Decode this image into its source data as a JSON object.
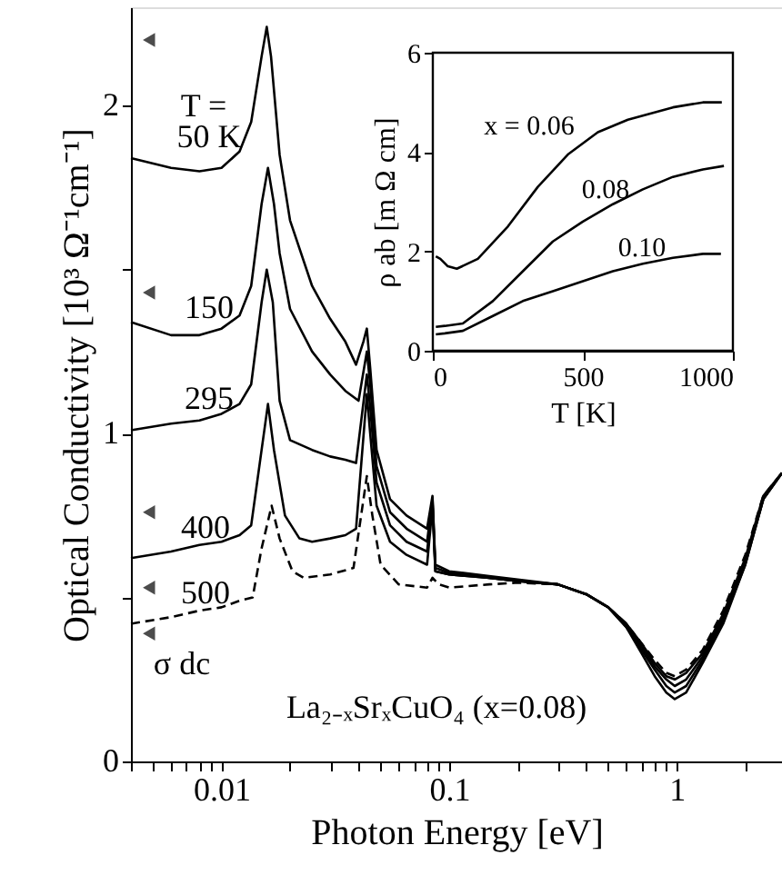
{
  "chart_data": [
    {
      "type": "line",
      "xlabel": "Photon Energy [eV]",
      "ylabel": "Optical Conductivity [10³ Ω⁻¹cm⁻¹]",
      "log": "x",
      "grid": false,
      "xlim": [
        0.004,
        2.9
      ],
      "ylim": [
        0,
        2.3
      ],
      "xticks": [
        {
          "value": 0.004,
          "label": null
        },
        {
          "value": 0.005,
          "label": null
        },
        {
          "value": 0.006,
          "label": null
        },
        {
          "value": 0.007,
          "label": null
        },
        {
          "value": 0.008,
          "label": null
        },
        {
          "value": 0.009,
          "label": null
        },
        0.01,
        {
          "value": 0.02,
          "label": null
        },
        {
          "value": 0.03,
          "label": null
        },
        {
          "value": 0.04,
          "label": null
        },
        {
          "value": 0.05,
          "label": null
        },
        {
          "value": 0.06,
          "label": null
        },
        {
          "value": 0.07,
          "label": null
        },
        {
          "value": 0.08,
          "label": null
        },
        {
          "value": 0.09,
          "label": null
        },
        0.1,
        {
          "value": 0.2,
          "label": null
        },
        {
          "value": 0.3,
          "label": null
        },
        {
          "value": 0.4,
          "label": null
        },
        {
          "value": 0.5,
          "label": null
        },
        {
          "value": 0.6,
          "label": null
        },
        {
          "value": 0.7,
          "label": null
        },
        {
          "value": 0.8,
          "label": null
        },
        {
          "value": 0.9,
          "label": null
        },
        1,
        {
          "value": 2,
          "label": null
        }
      ],
      "yticks": [
        0,
        {
          "value": 0.5,
          "label": null
        },
        1,
        {
          "value": 1.5,
          "label": null
        },
        2
      ],
      "series": [
        {
          "color": "#000000",
          "line_style": "solid",
          "x": [
            0.004,
            0.006,
            0.008,
            0.01,
            0.012,
            0.0135,
            0.015,
            0.0158,
            0.0165,
            0.018,
            0.02,
            0.025,
            0.03,
            0.035,
            0.039,
            0.042,
            0.0435,
            0.045,
            0.048,
            0.055,
            0.065,
            0.08,
            0.0845,
            0.087,
            0.1,
            0.15,
            0.2,
            0.3,
            0.4,
            0.5,
            0.6,
            0.7,
            0.8,
            0.9,
            0.98,
            1.1,
            1.3,
            1.6,
            2.0,
            2.4,
            2.9
          ],
          "values": [
            1.84,
            1.81,
            1.8,
            1.81,
            1.86,
            1.95,
            2.15,
            2.24,
            2.15,
            1.85,
            1.65,
            1.45,
            1.35,
            1.28,
            1.21,
            1.28,
            1.32,
            1.2,
            0.95,
            0.8,
            0.75,
            0.71,
            0.81,
            0.6,
            0.58,
            0.565,
            0.555,
            0.54,
            0.51,
            0.47,
            0.41,
            0.33,
            0.26,
            0.21,
            0.19,
            0.21,
            0.3,
            0.42,
            0.6,
            0.8,
            0.88
          ]
        },
        {
          "color": "#000000",
          "line_style": "solid",
          "x": [
            0.004,
            0.006,
            0.008,
            0.01,
            0.012,
            0.0135,
            0.015,
            0.016,
            0.017,
            0.018,
            0.02,
            0.025,
            0.03,
            0.035,
            0.04,
            0.0435,
            0.045,
            0.048,
            0.055,
            0.065,
            0.08,
            0.0845,
            0.087,
            0.1,
            0.15,
            0.2,
            0.3,
            0.4,
            0.5,
            0.6,
            0.7,
            0.8,
            0.9,
            0.98,
            1.1,
            1.3,
            1.6,
            2.0,
            2.4,
            2.9
          ],
          "values": [
            1.34,
            1.3,
            1.3,
            1.32,
            1.36,
            1.45,
            1.7,
            1.81,
            1.7,
            1.55,
            1.38,
            1.25,
            1.18,
            1.13,
            1.1,
            1.25,
            1.15,
            0.9,
            0.76,
            0.71,
            0.67,
            0.8,
            0.59,
            0.575,
            0.56,
            0.55,
            0.54,
            0.51,
            0.47,
            0.41,
            0.34,
            0.28,
            0.23,
            0.21,
            0.23,
            0.31,
            0.43,
            0.6,
            0.8,
            0.88
          ]
        },
        {
          "color": "#000000",
          "line_style": "solid",
          "x": [
            0.004,
            0.006,
            0.008,
            0.01,
            0.012,
            0.0135,
            0.015,
            0.0158,
            0.0168,
            0.018,
            0.02,
            0.025,
            0.03,
            0.035,
            0.039,
            0.0435,
            0.045,
            0.048,
            0.055,
            0.065,
            0.08,
            0.0845,
            0.087,
            0.1,
            0.15,
            0.2,
            0.3,
            0.4,
            0.5,
            0.6,
            0.7,
            0.8,
            0.9,
            0.98,
            1.1,
            1.3,
            1.6,
            2.0,
            2.4,
            2.9
          ],
          "values": [
            1.01,
            1.03,
            1.04,
            1.06,
            1.09,
            1.15,
            1.4,
            1.5,
            1.4,
            1.1,
            0.98,
            0.95,
            0.93,
            0.92,
            0.91,
            1.18,
            1.08,
            0.85,
            0.72,
            0.67,
            0.64,
            0.79,
            0.58,
            0.57,
            0.56,
            0.55,
            0.54,
            0.51,
            0.47,
            0.42,
            0.35,
            0.29,
            0.25,
            0.23,
            0.25,
            0.32,
            0.44,
            0.61,
            0.8,
            0.88
          ]
        },
        {
          "color": "#000000",
          "line_style": "solid",
          "x": [
            0.004,
            0.006,
            0.008,
            0.01,
            0.012,
            0.0135,
            0.015,
            0.016,
            0.017,
            0.019,
            0.022,
            0.025,
            0.03,
            0.035,
            0.039,
            0.0435,
            0.045,
            0.048,
            0.055,
            0.065,
            0.08,
            0.0845,
            0.087,
            0.1,
            0.15,
            0.2,
            0.3,
            0.4,
            0.5,
            0.6,
            0.7,
            0.8,
            0.9,
            0.98,
            1.1,
            1.3,
            1.6,
            2.0,
            2.4,
            2.9
          ],
          "values": [
            0.62,
            0.64,
            0.66,
            0.67,
            0.69,
            0.72,
            0.95,
            1.09,
            0.95,
            0.75,
            0.68,
            0.67,
            0.68,
            0.69,
            0.71,
            1.12,
            1.0,
            0.78,
            0.67,
            0.63,
            0.6,
            0.78,
            0.58,
            0.57,
            0.56,
            0.55,
            0.54,
            0.51,
            0.47,
            0.42,
            0.36,
            0.3,
            0.26,
            0.25,
            0.27,
            0.33,
            0.45,
            0.62,
            0.81,
            0.88
          ]
        },
        {
          "color": "#000000",
          "line_style": "dashed",
          "x": [
            0.004,
            0.006,
            0.008,
            0.01,
            0.012,
            0.0137,
            0.015,
            0.0166,
            0.018,
            0.0205,
            0.023,
            0.03,
            0.038,
            0.0435,
            0.046,
            0.05,
            0.06,
            0.08,
            0.0845,
            0.09,
            0.1,
            0.15,
            0.2,
            0.3,
            0.4,
            0.5,
            0.6,
            0.7,
            0.8,
            0.9,
            0.98,
            1.1,
            1.3,
            1.6,
            2.0,
            2.4,
            2.9
          ],
          "values": [
            0.42,
            0.44,
            0.46,
            0.47,
            0.49,
            0.5,
            0.65,
            0.78,
            0.68,
            0.58,
            0.56,
            0.57,
            0.59,
            0.87,
            0.75,
            0.6,
            0.54,
            0.53,
            0.56,
            0.54,
            0.53,
            0.54,
            0.545,
            0.54,
            0.51,
            0.47,
            0.42,
            0.36,
            0.31,
            0.27,
            0.26,
            0.28,
            0.34,
            0.46,
            0.63,
            0.81,
            0.88
          ]
        },
        {
          "type": "scatter",
          "marker": "triangle",
          "color": "#000000",
          "x": [
            0.0048,
            0.0048,
            0.0048,
            0.0048,
            0.0048
          ],
          "values": [
            2.2,
            1.43,
            0.76,
            0.53,
            0.39
          ]
        }
      ],
      "annotations": [
        "T =",
        "50 K",
        "150",
        "295",
        "400",
        "500",
        "σ dc",
        "La₂₋ₓSrₓCuO₄ (x=0.08)"
      ]
    },
    {
      "type": "line",
      "xlabel": "T  [K]",
      "ylabel": "ρ ab [m Ω cm]",
      "grid": false,
      "xlim": [
        0,
        1000
      ],
      "ylim": [
        0,
        6
      ],
      "xticks": [
        0,
        500,
        1000
      ],
      "yticks": [
        0,
        2,
        4,
        6
      ],
      "series": [
        {
          "color": "#000000",
          "x": [
            10,
            25,
            50,
            80,
            150,
            250,
            350,
            450,
            550,
            650,
            800,
            900,
            963
          ],
          "values": [
            1.9,
            1.85,
            1.7,
            1.65,
            1.85,
            2.5,
            3.3,
            3.95,
            4.4,
            4.65,
            4.9,
            5.0,
            5.0
          ]
        },
        {
          "color": "#000000",
          "x": [
            10,
            40,
            100,
            200,
            300,
            400,
            500,
            600,
            700,
            800,
            900,
            970
          ],
          "values": [
            0.48,
            0.5,
            0.55,
            1.0,
            1.6,
            2.2,
            2.6,
            2.95,
            3.25,
            3.5,
            3.65,
            3.72
          ]
        },
        {
          "color": "#000000",
          "x": [
            10,
            40,
            100,
            200,
            300,
            400,
            500,
            600,
            700,
            800,
            900,
            960
          ],
          "values": [
            0.33,
            0.35,
            0.4,
            0.7,
            1.0,
            1.2,
            1.4,
            1.6,
            1.75,
            1.87,
            1.95,
            1.95
          ]
        }
      ],
      "annotations": [
        "x = 0.06",
        "0.08",
        "0.10"
      ]
    }
  ]
}
